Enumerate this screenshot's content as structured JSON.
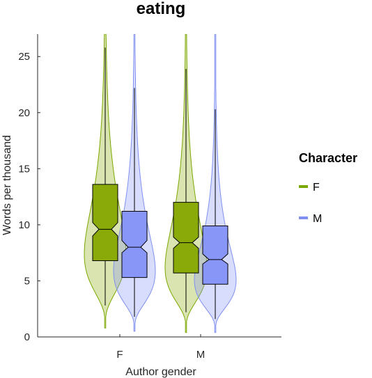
{
  "chart_data": {
    "type": "violin-box",
    "title": "eating",
    "xlabel": "Author gender",
    "ylabel": "Words per thousand",
    "categories": [
      "F",
      "M"
    ],
    "ylim": [
      0,
      27
    ],
    "yticks": [
      0,
      5,
      10,
      15,
      20,
      25
    ],
    "grid": false,
    "legend": {
      "title": "Character",
      "position": "right"
    },
    "series": [
      {
        "name": "F",
        "color": "#7ba800",
        "fill": "#8aaa0a",
        "stats": [
          {
            "category": "F",
            "min": 2.8,
            "q1": 6.8,
            "median": 9.6,
            "q3": 13.6,
            "max": 25.8,
            "notch_low": 9.0,
            "notch_high": 10.2,
            "violin_min": 0.8,
            "violin_max": 27
          },
          {
            "category": "M",
            "min": 2.2,
            "q1": 5.7,
            "median": 8.4,
            "q3": 12.0,
            "max": 23.9,
            "notch_low": 7.9,
            "notch_high": 8.9,
            "violin_min": 0.4,
            "violin_max": 27
          }
        ]
      },
      {
        "name": "M",
        "color": "#8090f0",
        "fill": "#8896f8",
        "stats": [
          {
            "category": "F",
            "min": 1.8,
            "q1": 5.3,
            "median": 8.0,
            "q3": 11.2,
            "max": 22.2,
            "notch_low": 7.5,
            "notch_high": 8.6,
            "violin_min": 0.5,
            "violin_max": 27
          },
          {
            "category": "M",
            "min": 1.6,
            "q1": 4.7,
            "median": 6.9,
            "q3": 9.9,
            "max": 20.3,
            "notch_low": 6.5,
            "notch_high": 7.4,
            "violin_min": 0.4,
            "violin_max": 27
          }
        ]
      }
    ]
  }
}
